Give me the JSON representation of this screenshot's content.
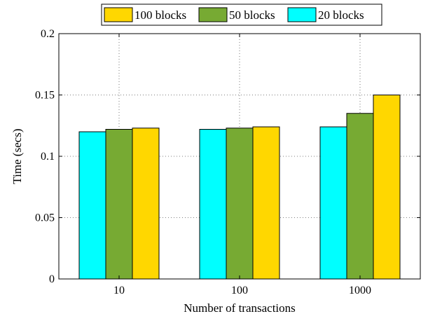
{
  "chart_data": {
    "type": "bar",
    "title": "",
    "xlabel": "Number of transactions",
    "ylabel": "Time (secs)",
    "categories": [
      "10",
      "100",
      "1000"
    ],
    "series": [
      {
        "name": "20 blocks",
        "color": "#00FFFF",
        "values": [
          0.12,
          0.122,
          0.124
        ]
      },
      {
        "name": "50 blocks",
        "color": "#77AA33",
        "values": [
          0.122,
          0.123,
          0.135
        ]
      },
      {
        "name": "100 blocks",
        "color": "#FFD700",
        "values": [
          0.123,
          0.124,
          0.15
        ]
      }
    ],
    "legend_order": [
      "100 blocks",
      "50 blocks",
      "20 blocks"
    ],
    "legend_position": "top",
    "ylim": [
      0,
      0.2
    ],
    "yticks": [
      0,
      0.05,
      0.1,
      0.15,
      0.2
    ],
    "ytick_labels": [
      "0",
      "0.05",
      "0.1",
      "0.15",
      "0.2"
    ],
    "grid": true
  }
}
